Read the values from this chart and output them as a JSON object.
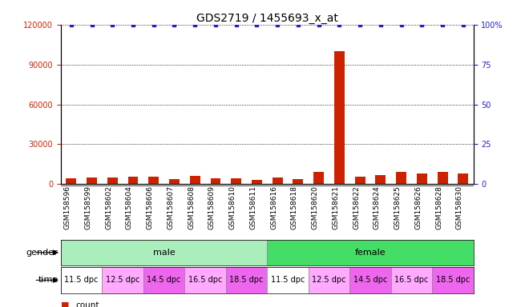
{
  "title": "GDS2719 / 1455693_x_at",
  "samples": [
    "GSM158596",
    "GSM158599",
    "GSM158602",
    "GSM158604",
    "GSM158606",
    "GSM158607",
    "GSM158608",
    "GSM158609",
    "GSM158610",
    "GSM158611",
    "GSM158616",
    "GSM158618",
    "GSM158620",
    "GSM158621",
    "GSM158622",
    "GSM158624",
    "GSM158625",
    "GSM158626",
    "GSM158628",
    "GSM158630"
  ],
  "counts": [
    4500,
    5200,
    4800,
    5800,
    5500,
    3800,
    6500,
    4200,
    4500,
    3200,
    5000,
    4000,
    9500,
    100000,
    5500,
    7000,
    9000,
    8000,
    9500,
    8000
  ],
  "percentile": [
    100,
    100,
    100,
    100,
    100,
    100,
    100,
    100,
    100,
    100,
    100,
    100,
    100,
    100,
    100,
    100,
    100,
    100,
    100,
    100
  ],
  "ylim_left": [
    0,
    120000
  ],
  "ylim_right": [
    0,
    100
  ],
  "yticks_left": [
    0,
    30000,
    60000,
    90000,
    120000
  ],
  "yticks_right": [
    0,
    25,
    50,
    75,
    100
  ],
  "ytick_labels_right": [
    "0",
    "25",
    "50",
    "75",
    "100%"
  ],
  "bar_color": "#cc2200",
  "scatter_color": "#2222cc",
  "grid_color": "#000000",
  "background_color": "#ffffff",
  "gender_groups": [
    {
      "name": "male",
      "start": 0,
      "end": 10,
      "color": "#aaeebb"
    },
    {
      "name": "female",
      "start": 10,
      "end": 20,
      "color": "#44dd66"
    }
  ],
  "time_groups": [
    {
      "name": "11.5 dpc",
      "start": 0,
      "end": 2,
      "color": "#ffffff"
    },
    {
      "name": "12.5 dpc",
      "start": 2,
      "end": 4,
      "color": "#ffaaff"
    },
    {
      "name": "14.5 dpc",
      "start": 4,
      "end": 6,
      "color": "#ee66ee"
    },
    {
      "name": "16.5 dpc",
      "start": 6,
      "end": 8,
      "color": "#ffaaff"
    },
    {
      "name": "18.5 dpc",
      "start": 8,
      "end": 10,
      "color": "#ee66ee"
    },
    {
      "name": "11.5 dpc",
      "start": 10,
      "end": 12,
      "color": "#ffffff"
    },
    {
      "name": "12.5 dpc",
      "start": 12,
      "end": 14,
      "color": "#ffaaff"
    },
    {
      "name": "14.5 dpc",
      "start": 14,
      "end": 16,
      "color": "#ee66ee"
    },
    {
      "name": "16.5 dpc",
      "start": 16,
      "end": 18,
      "color": "#ffaaff"
    },
    {
      "name": "18.5 dpc",
      "start": 18,
      "end": 20,
      "color": "#ee66ee"
    }
  ],
  "title_fontsize": 10,
  "tick_fontsize": 7,
  "label_fontsize": 8,
  "row_label_fontsize": 8
}
